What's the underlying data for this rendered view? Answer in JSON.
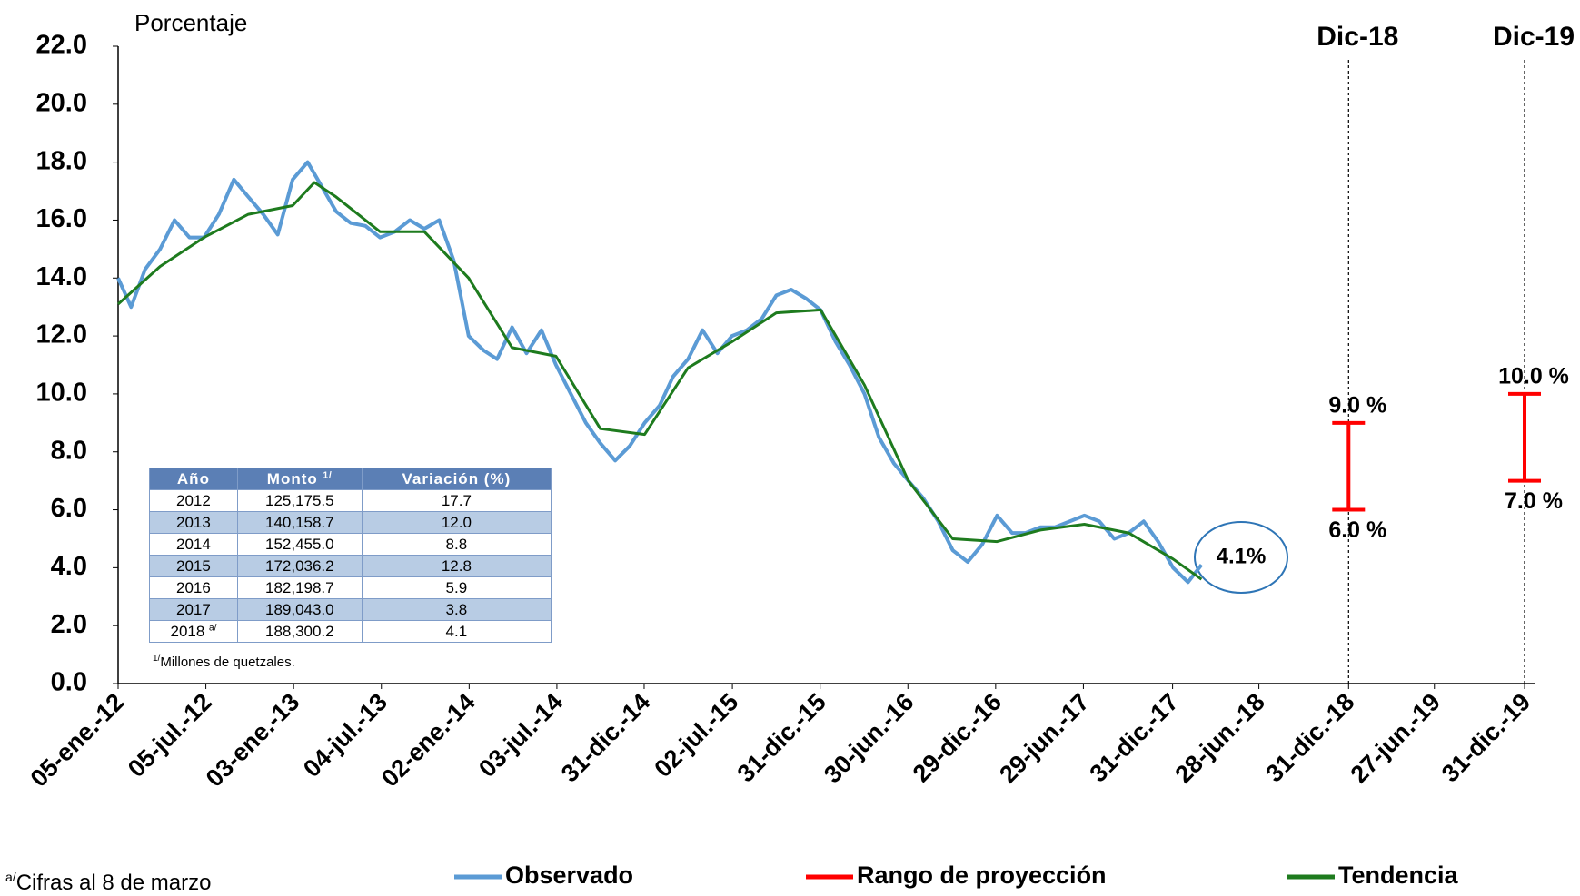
{
  "chart_data": {
    "type": "line",
    "y_label": "Porcentaje",
    "xlim": [
      "2012-01-05",
      "2019-12-31"
    ],
    "xticks": [
      {
        "value": "2012-01-05",
        "label": "05-ene.-12"
      },
      {
        "value": "2012-07-05",
        "label": "05-jul.-12"
      },
      {
        "value": "2013-01-03",
        "label": "03-ene.-13"
      },
      {
        "value": "2013-07-04",
        "label": "04-jul.-13"
      },
      {
        "value": "2014-01-02",
        "label": "02-ene.-14"
      },
      {
        "value": "2014-07-03",
        "label": "03-jul.-14"
      },
      {
        "value": "2014-12-31",
        "label": "31-dic.-14"
      },
      {
        "value": "2015-07-02",
        "label": "02-jul.-15"
      },
      {
        "value": "2015-12-31",
        "label": "31-dic.-15"
      },
      {
        "value": "2016-06-30",
        "label": "30-jun.-16"
      },
      {
        "value": "2016-12-29",
        "label": "29-dic.-16"
      },
      {
        "value": "2017-06-29",
        "label": "29-jun.-17"
      },
      {
        "value": "2017-12-31",
        "label": "31-dic.-17"
      },
      {
        "value": "2018-06-28",
        "label": "28-jun.-18"
      },
      {
        "value": "2018-12-31",
        "label": "31-dic.-18"
      },
      {
        "value": "2019-06-27",
        "label": "27-jun.-19"
      },
      {
        "value": "2019-12-31",
        "label": "31-dic.-19"
      }
    ],
    "ylim": [
      0,
      22
    ],
    "yticks": [
      {
        "value": 0,
        "label": "0.0"
      },
      {
        "value": 2,
        "label": "2.0"
      },
      {
        "value": 4,
        "label": "4.0"
      },
      {
        "value": 6,
        "label": "6.0"
      },
      {
        "value": 8,
        "label": "8.0"
      },
      {
        "value": 10,
        "label": "10.0"
      },
      {
        "value": 12,
        "label": "12.0"
      },
      {
        "value": 14,
        "label": "14.0"
      },
      {
        "value": 16,
        "label": "16.0"
      },
      {
        "value": 18,
        "label": "18.0"
      },
      {
        "value": 20,
        "label": "20.0"
      },
      {
        "value": 22,
        "label": "22.0"
      }
    ],
    "series": [
      {
        "name": "Observado",
        "type": "line",
        "color": "#5b9bd5",
        "x": [
          "2012-01-05",
          "2012-02-01",
          "2012-03-01",
          "2012-04-01",
          "2012-05-01",
          "2012-06-01",
          "2012-07-01",
          "2012-08-01",
          "2012-09-01",
          "2012-10-01",
          "2012-11-01",
          "2012-12-01",
          "2013-01-01",
          "2013-02-01",
          "2013-03-01",
          "2013-04-01",
          "2013-05-01",
          "2013-06-01",
          "2013-07-01",
          "2013-08-01",
          "2013-09-01",
          "2013-10-01",
          "2013-11-01",
          "2013-12-01",
          "2014-01-01",
          "2014-02-01",
          "2014-03-01",
          "2014-04-01",
          "2014-05-01",
          "2014-06-01",
          "2014-07-01",
          "2014-08-01",
          "2014-09-01",
          "2014-10-01",
          "2014-11-01",
          "2014-12-01",
          "2015-01-01",
          "2015-02-01",
          "2015-03-01",
          "2015-04-01",
          "2015-05-01",
          "2015-06-01",
          "2015-07-01",
          "2015-08-01",
          "2015-09-01",
          "2015-10-01",
          "2015-11-01",
          "2015-12-01",
          "2016-01-01",
          "2016-02-01",
          "2016-03-01",
          "2016-04-01",
          "2016-05-01",
          "2016-06-01",
          "2016-07-01",
          "2016-08-01",
          "2016-09-01",
          "2016-10-01",
          "2016-11-01",
          "2016-12-01",
          "2017-01-01",
          "2017-02-01",
          "2017-03-01",
          "2017-04-01",
          "2017-05-01",
          "2017-06-01",
          "2017-07-01",
          "2017-08-01",
          "2017-09-01",
          "2017-10-01",
          "2017-11-01",
          "2017-12-01",
          "2018-01-01",
          "2018-02-01",
          "2018-03-01"
        ],
        "values": [
          14.0,
          13.0,
          14.3,
          15.0,
          16.0,
          15.4,
          15.4,
          16.2,
          17.4,
          16.8,
          16.2,
          15.5,
          17.4,
          18.0,
          17.2,
          16.3,
          15.9,
          15.8,
          15.4,
          15.6,
          16.0,
          15.7,
          16.0,
          14.6,
          12.0,
          11.5,
          11.2,
          12.3,
          11.4,
          12.2,
          11.0,
          10.0,
          9.0,
          8.3,
          7.7,
          8.2,
          9.0,
          9.6,
          10.6,
          11.2,
          12.2,
          11.4,
          12.0,
          12.2,
          12.6,
          13.4,
          13.6,
          13.3,
          12.9,
          11.8,
          11.0,
          10.0,
          8.5,
          7.6,
          7.0,
          6.4,
          5.6,
          4.6,
          4.2,
          4.8,
          5.8,
          5.2,
          5.2,
          5.4,
          5.4,
          5.6,
          5.8,
          5.6,
          5.0,
          5.2,
          5.6,
          4.9,
          4.0,
          3.5,
          4.1
        ]
      },
      {
        "name": "Rango de proyección",
        "type": "range",
        "color": "#ff0000",
        "x": [
          "2018-12-31",
          "2019-12-31"
        ],
        "headers": [
          "Dic-18",
          "Dic-19"
        ],
        "low": [
          6,
          7
        ],
        "high": [
          9,
          10
        ],
        "low_labels": [
          "6.0 %",
          "7.0 %"
        ],
        "high_labels": [
          "9.0 %",
          "10.0 %"
        ]
      },
      {
        "name": "Tendencia",
        "type": "line",
        "color": "#1e7b1e",
        "x": [
          "2012-01-05",
          "2012-04-01",
          "2012-07-01",
          "2012-10-01",
          "2013-01-01",
          "2013-02-15",
          "2013-04-01",
          "2013-07-01",
          "2013-10-01",
          "2014-01-01",
          "2014-04-01",
          "2014-07-01",
          "2014-10-01",
          "2015-01-01",
          "2015-04-01",
          "2015-07-01",
          "2015-10-01",
          "2016-01-01",
          "2016-04-01",
          "2016-07-01",
          "2016-10-01",
          "2017-01-01",
          "2017-04-01",
          "2017-07-01",
          "2017-10-01",
          "2018-01-01",
          "2018-03-01"
        ],
        "values": [
          13.1,
          14.4,
          15.4,
          16.2,
          16.5,
          17.3,
          16.8,
          15.6,
          15.6,
          14.0,
          11.6,
          11.3,
          8.8,
          8.6,
          10.9,
          11.8,
          12.8,
          12.9,
          10.3,
          7.0,
          5.0,
          4.9,
          5.3,
          5.5,
          5.2,
          4.3,
          3.6
        ]
      }
    ],
    "annotation": "4.1%",
    "legend": "bottom"
  },
  "table": {
    "headers": [
      {
        "text": "Año"
      },
      {
        "text": "Monto",
        "sup": "1/"
      },
      {
        "text": "Variación (%)"
      }
    ],
    "rows": [
      [
        {
          "text": "2012"
        },
        {
          "text": "125,175.5"
        },
        {
          "text": "17.7"
        }
      ],
      [
        {
          "text": "2013"
        },
        {
          "text": "140,158.7"
        },
        {
          "text": "12.0"
        }
      ],
      [
        {
          "text": "2014"
        },
        {
          "text": "152,455.0"
        },
        {
          "text": "8.8"
        }
      ],
      [
        {
          "text": "2015"
        },
        {
          "text": "172,036.2"
        },
        {
          "text": "12.8"
        }
      ],
      [
        {
          "text": "2016"
        },
        {
          "text": "182,198.7"
        },
        {
          "text": "5.9"
        }
      ],
      [
        {
          "text": "2017"
        },
        {
          "text": "189,043.0"
        },
        {
          "text": "3.8"
        }
      ],
      [
        {
          "text": "2018",
          "sup": "a/"
        },
        {
          "text": "188,300.2"
        },
        {
          "text": "4.1"
        }
      ]
    ],
    "note": {
      "sup": "1/",
      "text": "Millones de quetzales."
    }
  },
  "footnote": {
    "sup": "a/",
    "text": "Cifras al 8 de marzo"
  }
}
